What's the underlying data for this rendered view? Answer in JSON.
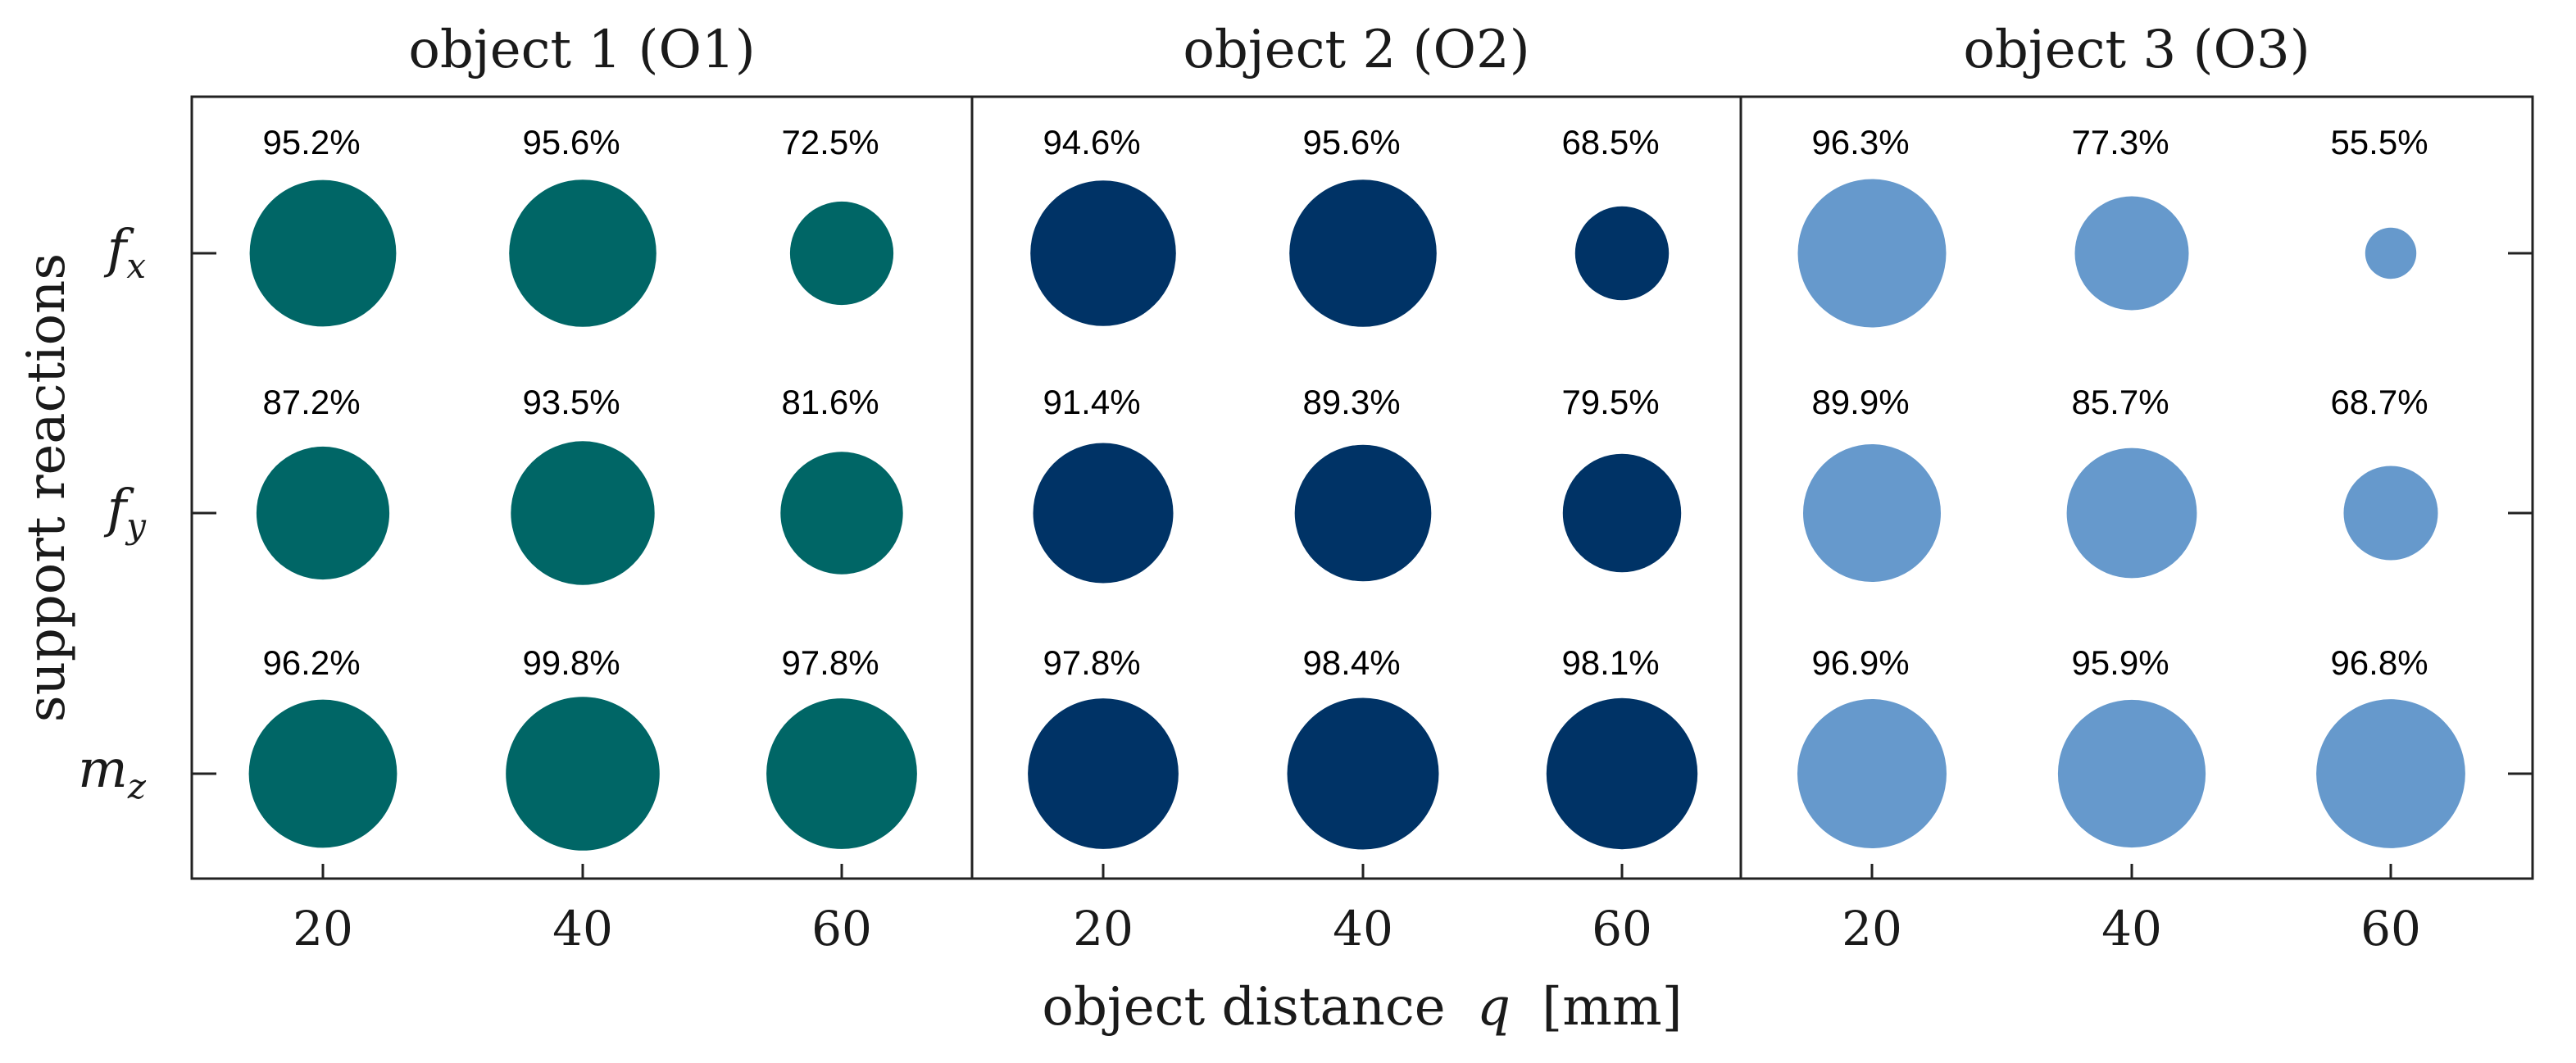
{
  "chart_data": {
    "type": "bubble",
    "xlabel": "object distance",
    "xlabel_var": "q",
    "xlabel_unit": "[mm]",
    "ylabel": "support reactions",
    "x": [
      20,
      40,
      60
    ],
    "y_categories": [
      {
        "base": "f",
        "sub": "x"
      },
      {
        "base": "f",
        "sub": "y"
      },
      {
        "base": "m",
        "sub": "z"
      }
    ],
    "value_unit": "%",
    "panels": [
      {
        "title": "object 1 (O1)",
        "color": "#006666",
        "values": [
          [
            95.2,
            95.6,
            72.5
          ],
          [
            87.2,
            93.5,
            81.6
          ],
          [
            96.2,
            99.8,
            97.8
          ]
        ]
      },
      {
        "title": "object 2 (O2)",
        "color": "#003366",
        "values": [
          [
            94.6,
            95.6,
            68.5
          ],
          [
            91.4,
            89.3,
            79.5
          ],
          [
            97.8,
            98.4,
            98.1
          ]
        ]
      },
      {
        "title": "object 3 (O3)",
        "color": "#6699cc",
        "values": [
          [
            96.3,
            77.3,
            55.5
          ],
          [
            89.9,
            85.7,
            68.7
          ],
          [
            96.9,
            95.9,
            96.8
          ]
        ]
      }
    ]
  }
}
